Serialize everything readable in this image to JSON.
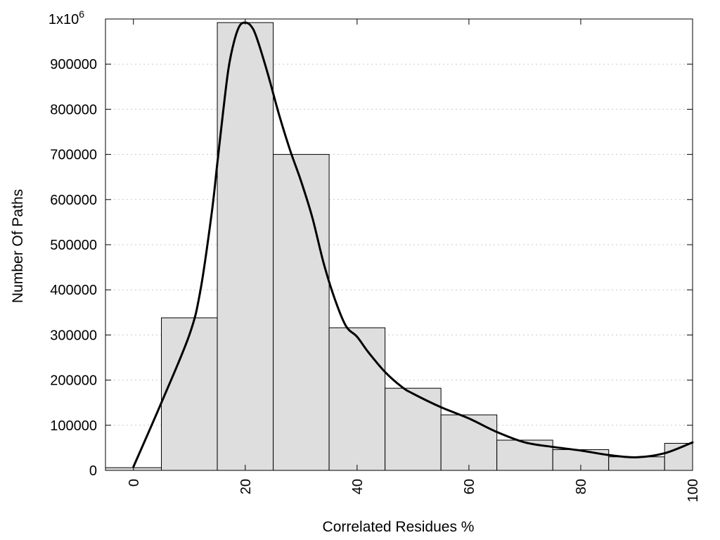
{
  "chart_data": {
    "type": "bar",
    "xlabel": "Correlated Residues %",
    "ylabel": "Number Of Paths",
    "xlim": [
      -5,
      100
    ],
    "ylim": [
      0,
      1000000
    ],
    "x_ticks": [
      0,
      20,
      40,
      60,
      80,
      100
    ],
    "y_ticks": [
      {
        "value": 0,
        "label": "0"
      },
      {
        "value": 100000,
        "label": "100000"
      },
      {
        "value": 200000,
        "label": "200000"
      },
      {
        "value": 300000,
        "label": "300000"
      },
      {
        "value": 400000,
        "label": "400000"
      },
      {
        "value": 500000,
        "label": "500000"
      },
      {
        "value": 600000,
        "label": "600000"
      },
      {
        "value": 700000,
        "label": "700000"
      },
      {
        "value": 800000,
        "label": "800000"
      },
      {
        "value": 900000,
        "label": "900000"
      },
      {
        "value": 1000000,
        "label": "1x10",
        "sup": "6"
      }
    ],
    "grid": true,
    "bar_width": 10,
    "series": [
      {
        "type": "bar",
        "x": [
          0,
          10,
          20,
          30,
          40,
          50,
          60,
          70,
          80,
          90,
          100
        ],
        "values": [
          6000,
          338000,
          992000,
          700000,
          316000,
          182000,
          123000,
          67000,
          46000,
          30000,
          60000
        ],
        "color": "#dedede"
      },
      {
        "type": "line",
        "color": "#000000",
        "points": [
          [
            0,
            8000
          ],
          [
            5,
            150000
          ],
          [
            10,
            300000
          ],
          [
            12,
            400000
          ],
          [
            14,
            570000
          ],
          [
            15,
            680000
          ],
          [
            16,
            790000
          ],
          [
            17,
            890000
          ],
          [
            18,
            950000
          ],
          [
            19,
            985000
          ],
          [
            20,
            992000
          ],
          [
            21,
            985000
          ],
          [
            22,
            960000
          ],
          [
            24,
            880000
          ],
          [
            26,
            790000
          ],
          [
            28,
            710000
          ],
          [
            30,
            640000
          ],
          [
            32,
            560000
          ],
          [
            34,
            460000
          ],
          [
            36,
            380000
          ],
          [
            38,
            320000
          ],
          [
            40,
            296000
          ],
          [
            42,
            262000
          ],
          [
            45,
            218000
          ],
          [
            48,
            185000
          ],
          [
            50,
            170000
          ],
          [
            55,
            140000
          ],
          [
            60,
            115000
          ],
          [
            65,
            85000
          ],
          [
            70,
            62000
          ],
          [
            75,
            52000
          ],
          [
            80,
            44000
          ],
          [
            85,
            34000
          ],
          [
            90,
            29000
          ],
          [
            95,
            38000
          ],
          [
            100,
            62000
          ]
        ]
      }
    ]
  }
}
